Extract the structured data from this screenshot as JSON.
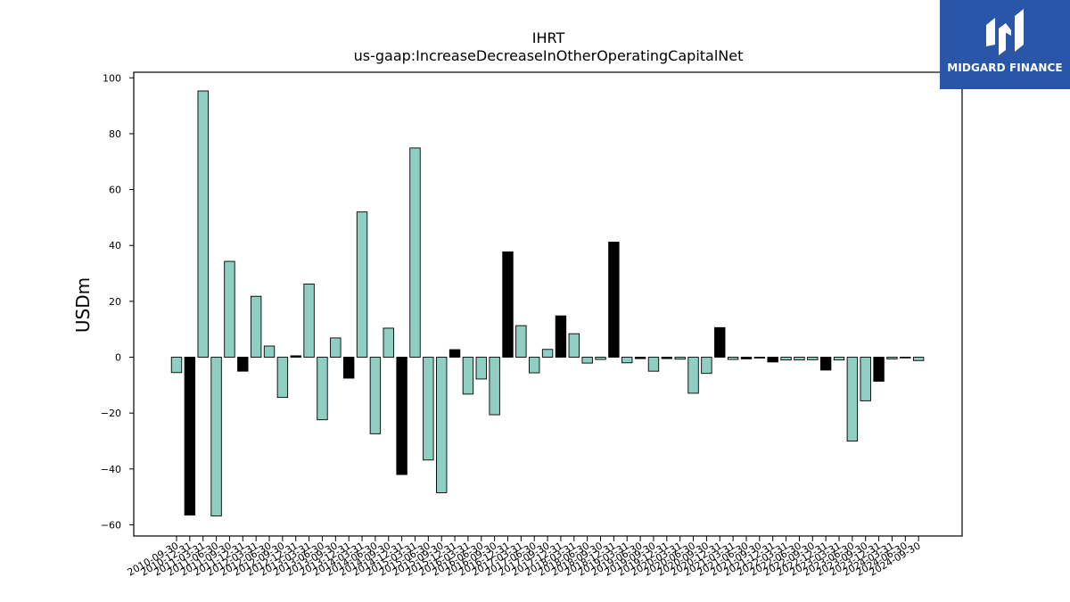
{
  "chart_data": {
    "type": "bar",
    "title": "IHRT",
    "subtitle": "us-gaap:IncreaseDecreaseInOtherOperatingCapitalNet",
    "xlabel": "",
    "ylabel": "USDm",
    "ylim": [
      -64,
      102
    ],
    "yticks": [
      -60,
      -40,
      -20,
      0,
      20,
      40,
      60,
      80,
      100
    ],
    "grid": false,
    "colors": {
      "positive_fill": "#8ecfc2",
      "negative_fill": "#000000",
      "edge": "#000000"
    },
    "categories": [
      "2010-09-30",
      "2010-12-31",
      "2011-03-31",
      "2011-06-30",
      "2011-09-30",
      "2011-12-31",
      "2012-03-31",
      "2012-06-30",
      "2012-09-30",
      "2012-12-31",
      "2013-03-31",
      "2013-06-30",
      "2013-09-30",
      "2013-12-31",
      "2014-03-31",
      "2014-06-30",
      "2014-09-30",
      "2014-12-31",
      "2015-03-31",
      "2015-06-30",
      "2015-09-30",
      "2015-12-31",
      "2016-03-31",
      "2016-06-30",
      "2016-09-30",
      "2016-12-31",
      "2017-03-31",
      "2017-06-30",
      "2017-09-30",
      "2017-12-31",
      "2018-03-31",
      "2018-06-30",
      "2018-09-30",
      "2018-12-31",
      "2019-03-31",
      "2019-06-30",
      "2019-09-30",
      "2019-12-31",
      "2020-03-31",
      "2020-06-30",
      "2020-09-30",
      "2020-12-31",
      "2021-03-31",
      "2021-06-30",
      "2021-09-30",
      "2021-12-31",
      "2022-03-31",
      "2022-06-30",
      "2022-09-30",
      "2022-12-31",
      "2023-03-31",
      "2023-06-30",
      "2023-09-30",
      "2023-12-31",
      "2024-03-31",
      "2024-06-30",
      "2024-09-30"
    ],
    "values": [
      -5.5,
      -56.5,
      95.3,
      -56.8,
      34.3,
      -5.0,
      21.8,
      4.0,
      -14.4,
      0.5,
      26.2,
      -22.4,
      6.9,
      -7.5,
      52.0,
      -27.4,
      10.4,
      -42.0,
      74.9,
      -36.8,
      -48.5,
      2.7,
      -13.2,
      -7.8,
      -20.6,
      37.7,
      11.3,
      -5.6,
      2.8,
      14.8,
      8.4,
      -2.1,
      -0.8,
      41.2,
      -2.0,
      -0.5,
      -5.0,
      -0.5,
      -0.7,
      -12.9,
      -5.8,
      10.6,
      -0.8,
      -0.6,
      -0.3,
      -1.7,
      -1.0,
      -1.0,
      -0.9,
      -4.6,
      -1.0,
      -30.0,
      -15.6,
      -8.6,
      -0.6,
      -0.2,
      -1.2
    ],
    "bar_styles": [
      "light",
      "dark",
      "light",
      "light",
      "light",
      "dark",
      "light",
      "light",
      "light",
      "dark",
      "light",
      "light",
      "light",
      "dark",
      "light",
      "light",
      "light",
      "dark",
      "light",
      "light",
      "light",
      "dark",
      "light",
      "light",
      "light",
      "dark",
      "light",
      "light",
      "light",
      "dark",
      "light",
      "light",
      "light",
      "dark",
      "light",
      "dark",
      "light",
      "dark",
      "light",
      "light",
      "light",
      "dark",
      "light",
      "dark",
      "light",
      "dark",
      "light",
      "light",
      "light",
      "dark",
      "light",
      "light",
      "light",
      "dark",
      "light",
      "dark",
      "light"
    ]
  },
  "logo": {
    "text": "MIDGARD FINANCE",
    "icon": "mf-monogram-icon",
    "background": "#2a56a8"
  }
}
